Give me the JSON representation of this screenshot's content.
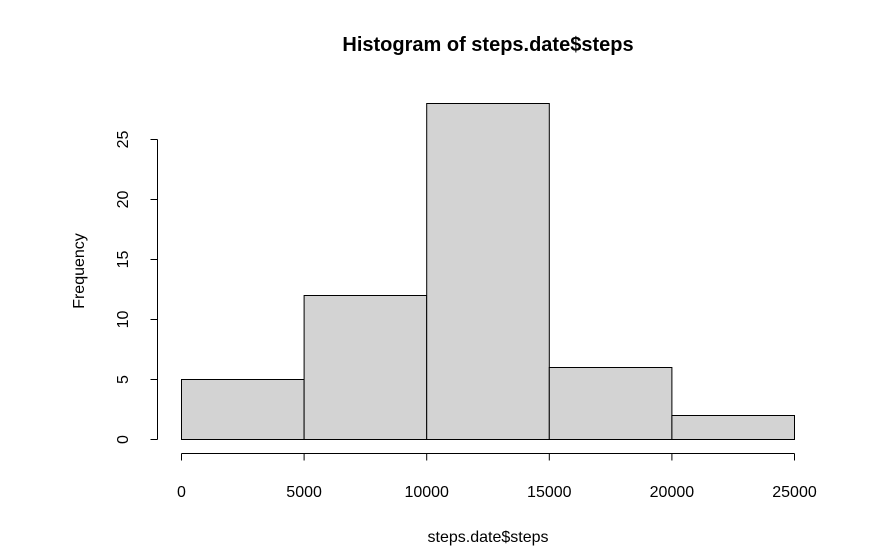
{
  "chart_data": {
    "type": "bar",
    "title": "Histogram of steps.date$steps",
    "xlabel": "steps.date$steps",
    "ylabel": "Frequency",
    "bins": [
      {
        "from": 0,
        "to": 5000,
        "count": 5
      },
      {
        "from": 5000,
        "to": 10000,
        "count": 12
      },
      {
        "from": 10000,
        "to": 15000,
        "count": 28
      },
      {
        "from": 15000,
        "to": 20000,
        "count": 6
      },
      {
        "from": 20000,
        "to": 25000,
        "count": 2
      }
    ],
    "xlim": [
      0,
      25000
    ],
    "ylim": [
      0,
      28
    ],
    "x_ticks": [
      "0",
      "5000",
      "10000",
      "15000",
      "20000",
      "25000"
    ],
    "y_ticks": [
      "0",
      "5",
      "10",
      "15",
      "20",
      "25"
    ],
    "grid": false,
    "bar_fill": "#d3d3d3",
    "bar_stroke": "#000000"
  }
}
